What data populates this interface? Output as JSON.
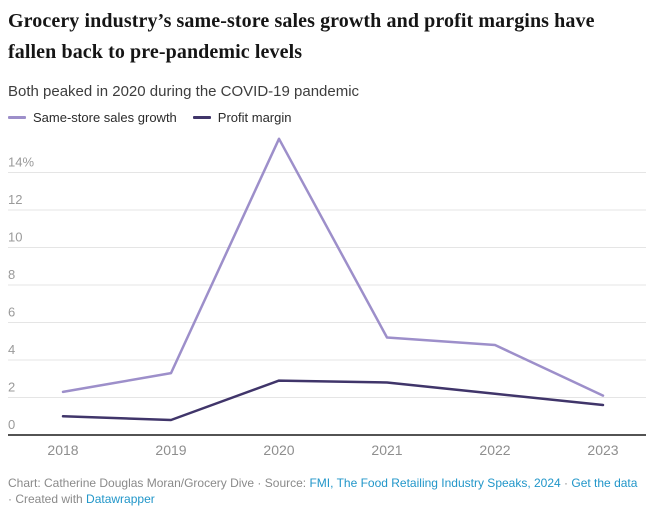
{
  "header": {
    "title": "Grocery industry’s same-store sales growth and profit margins have fallen back to pre-pandemic levels",
    "subtitle": "Both peaked in 2020 during the COVID-19 pandemic"
  },
  "legend": {
    "items": [
      {
        "label": "Same-store sales growth",
        "color": "#9d8fca"
      },
      {
        "label": "Profit margin",
        "color": "#40356a"
      }
    ]
  },
  "chart_data": {
    "type": "line",
    "x": [
      "2018",
      "2019",
      "2020",
      "2021",
      "2022",
      "2023"
    ],
    "series": [
      {
        "name": "Same-store sales growth",
        "color": "#9d8fca",
        "values": [
          2.3,
          3.3,
          15.8,
          5.2,
          4.8,
          2.1
        ]
      },
      {
        "name": "Profit margin",
        "color": "#40356a",
        "values": [
          1.0,
          0.8,
          2.9,
          2.8,
          2.2,
          1.6
        ]
      }
    ],
    "title": "Both peaked in 2020 during the COVID-19 pandemic",
    "xlabel": "",
    "ylabel": "",
    "ylim": [
      0,
      16
    ],
    "yticks": [
      0,
      2,
      4,
      6,
      8,
      10,
      12,
      14
    ],
    "ytick_top_suffix": "%",
    "grid": true,
    "legend_position": "top",
    "colors": {
      "grid": "#e5e5e5",
      "axis": "#1a1a1a",
      "ytick_label": "#9a9a9a",
      "xtick_label": "#8e8e8e"
    }
  },
  "footer": {
    "link_color": "#2196c9",
    "segments": [
      {
        "text": "Chart: Catherine Douglas Moran/Grocery Dive · Source: ",
        "link": false
      },
      {
        "text": "FMI, The Food Retailing Industry Speaks, 2024",
        "link": true
      },
      {
        "text": " · ",
        "link": false
      },
      {
        "text": "Get the data",
        "link": true
      },
      {
        "text": " · Created with ",
        "link": false
      },
      {
        "text": "Datawrapper",
        "link": true
      }
    ]
  }
}
